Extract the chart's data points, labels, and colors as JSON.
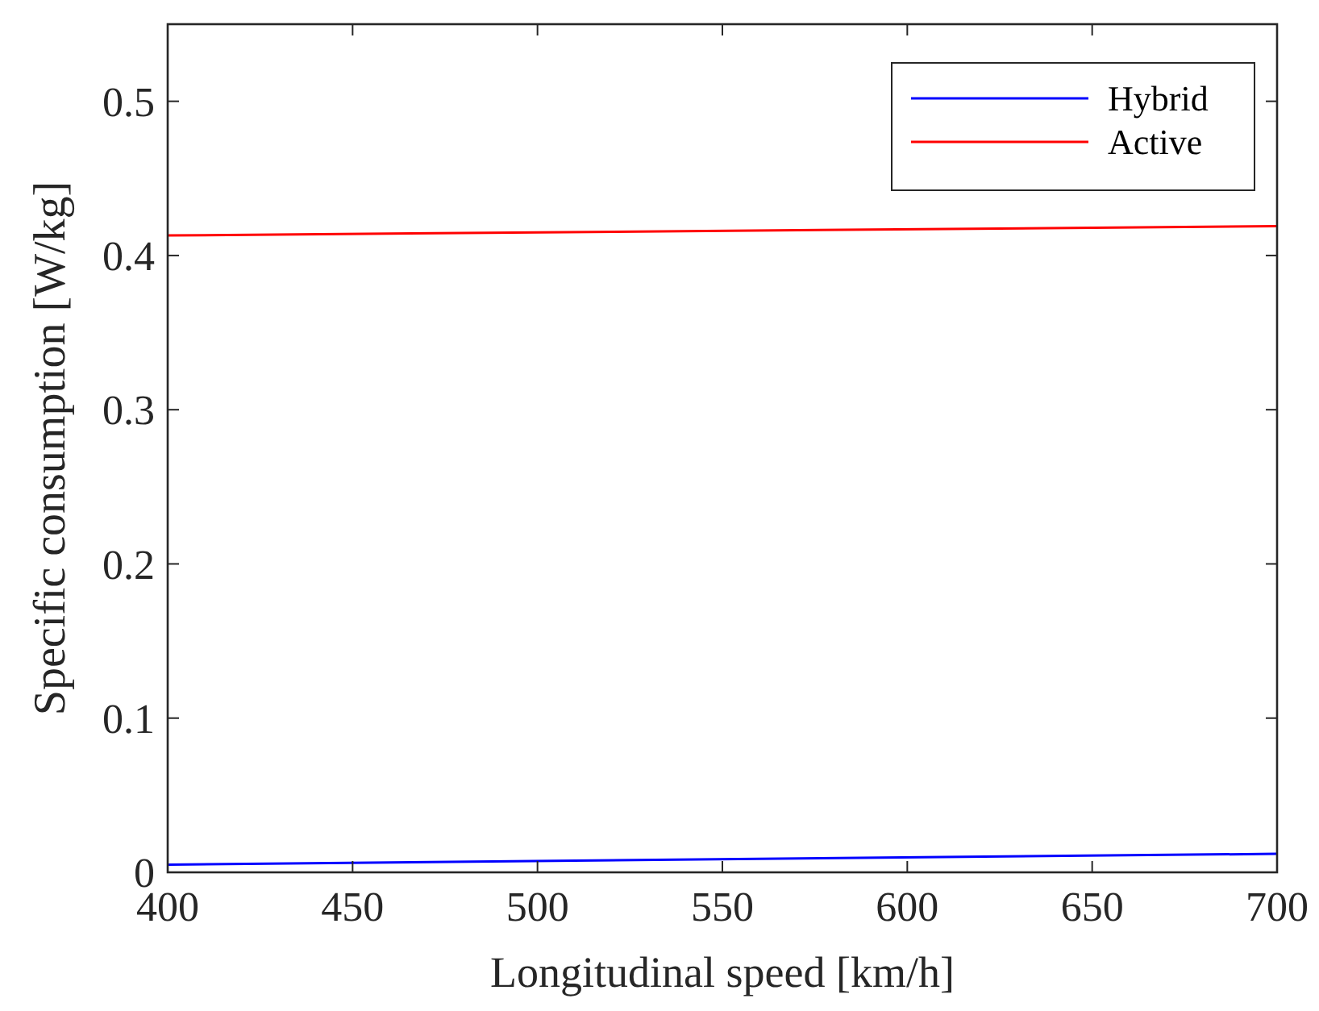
{
  "chart_data": {
    "type": "line",
    "xlabel": "Longitudinal speed [km/h]",
    "ylabel": "Specific consumption [W/kg]",
    "x": [
      400,
      700
    ],
    "series": [
      {
        "name": "Hybrid",
        "color": "#0000ff",
        "values": [
          0.005,
          0.012
        ]
      },
      {
        "name": "Active",
        "color": "#ff0000",
        "values": [
          0.413,
          0.419
        ]
      }
    ],
    "xlim": [
      400,
      700
    ],
    "xticks": [
      400,
      450,
      500,
      550,
      600,
      650,
      700
    ],
    "ylim": [
      0,
      0.55
    ],
    "yticks": [
      0,
      0.1,
      0.2,
      0.3,
      0.4,
      0.5
    ],
    "grid": false,
    "legend": "top right",
    "marker": "none",
    "line_style": "solid"
  }
}
